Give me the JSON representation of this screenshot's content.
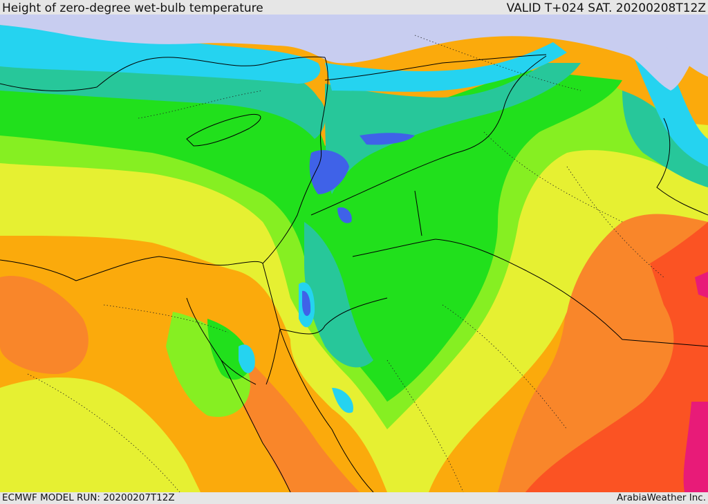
{
  "header": {
    "title": "Height of zero-degree wet-bulb temperature",
    "valid": "VALID T+024 SAT. 20200208T12Z"
  },
  "footer": {
    "model_run": "ECMWF MODEL RUN: 20200207T12Z",
    "credit": "ArabiaWeather Inc."
  },
  "map": {
    "palette": {
      "sea_cold": "#c8cdf0",
      "blue": "#3f62e8",
      "cyan": "#25d3f0",
      "teal": "#27c79a",
      "green": "#21e01c",
      "light_green": "#86ef22",
      "yellow": "#e6f032",
      "orange": "#fbaa0c",
      "dark_orange": "#f9862a",
      "red_orange": "#fb5323",
      "magenta": "#e81b78",
      "border": "#000000"
    }
  }
}
